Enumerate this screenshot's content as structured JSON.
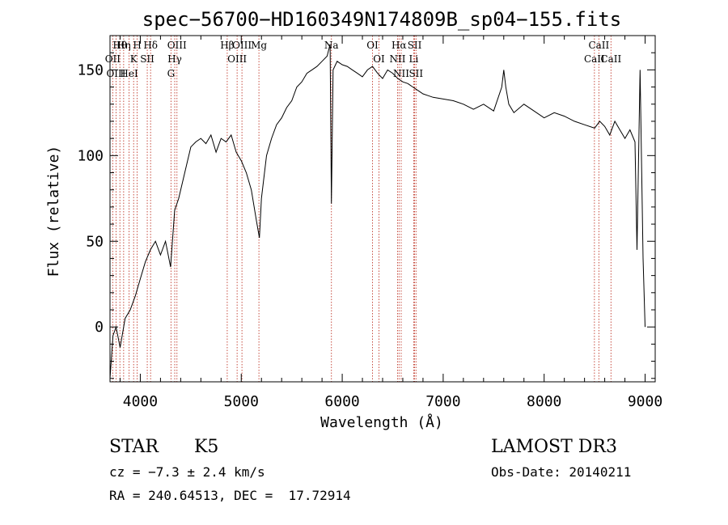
{
  "chart_data": {
    "type": "line",
    "title": "spec−56700−HD160349N174809B_sp04−155.fits",
    "xlabel": "Wavelength (Å)",
    "ylabel": "Flux (relative)",
    "xlim": [
      3700,
      9100
    ],
    "ylim": [
      -32,
      170
    ],
    "xticks": [
      4000,
      5000,
      6000,
      7000,
      8000,
      9000
    ],
    "yticks": [
      0,
      50,
      100,
      150
    ],
    "grid": false,
    "series": [
      {
        "x": [
          3700,
          3730,
          3760,
          3800,
          3850,
          3900,
          3950,
          4000,
          4050,
          4100,
          4150,
          4200,
          4250,
          4300,
          4340,
          4380,
          4420,
          4460,
          4500,
          4550,
          4600,
          4650,
          4700,
          4750,
          4800,
          4850,
          4900,
          4950,
          5000,
          5050,
          5100,
          5150,
          5180,
          5200,
          5250,
          5300,
          5350,
          5400,
          5450,
          5500,
          5550,
          5600,
          5650,
          5700,
          5750,
          5800,
          5850,
          5880,
          5893,
          5910,
          5950,
          6000,
          6050,
          6100,
          6150,
          6200,
          6250,
          6300,
          6350,
          6400,
          6450,
          6500,
          6550,
          6600,
          6650,
          6700,
          6750,
          6800,
          6850,
          6900,
          7000,
          7100,
          7200,
          7300,
          7400,
          7500,
          7580,
          7600,
          7620,
          7650,
          7700,
          7800,
          7900,
          8000,
          8100,
          8200,
          8300,
          8400,
          8500,
          8550,
          8600,
          8650,
          8700,
          8750,
          8800,
          8850,
          8900,
          8920,
          8950,
          8980,
          9000
        ],
        "y": [
          -30,
          -5,
          0,
          -12,
          5,
          10,
          18,
          28,
          38,
          45,
          50,
          42,
          50,
          35,
          68,
          75,
          85,
          95,
          105,
          108,
          110,
          107,
          112,
          102,
          110,
          108,
          112,
          102,
          97,
          90,
          80,
          62,
          52,
          75,
          100,
          110,
          118,
          122,
          128,
          132,
          140,
          143,
          148,
          150,
          152,
          155,
          158,
          165,
          72,
          150,
          155,
          153,
          152,
          150,
          148,
          146,
          150,
          152,
          148,
          145,
          150,
          148,
          145,
          143,
          142,
          140,
          138,
          136,
          135,
          134,
          133,
          132,
          130,
          127,
          130,
          126,
          140,
          150,
          140,
          130,
          125,
          130,
          126,
          122,
          125,
          123,
          120,
          118,
          116,
          120,
          117,
          112,
          120,
          115,
          110,
          115,
          108,
          45,
          150,
          40,
          0
        ]
      }
    ],
    "spectral_lines": [
      {
        "name": "Hθ",
        "wavelength": 3798
      },
      {
        "name": "OII",
        "wavelength": 3727
      },
      {
        "name": "OIII",
        "wavelength": 3760
      },
      {
        "name": "Hη",
        "wavelength": 3835
      },
      {
        "name": "K",
        "wavelength": 3934
      },
      {
        "name": "HeI",
        "wavelength": 3889
      },
      {
        "name": "H",
        "wavelength": 3969
      },
      {
        "name": "SII",
        "wavelength": 4069
      },
      {
        "name": "Hδ",
        "wavelength": 4102
      },
      {
        "name": "OIII",
        "wavelength": 4363
      },
      {
        "name": "Hγ",
        "wavelength": 4341
      },
      {
        "name": "G",
        "wavelength": 4304
      },
      {
        "name": "Hβ",
        "wavelength": 4861
      },
      {
        "name": "OIII",
        "wavelength": 5007
      },
      {
        "name": "OIII",
        "wavelength": 4959
      },
      {
        "name": "Mg",
        "wavelength": 5175
      },
      {
        "name": "Na",
        "wavelength": 5893
      },
      {
        "name": "OI",
        "wavelength": 6300
      },
      {
        "name": "OI",
        "wavelength": 6364
      },
      {
        "name": "Hα",
        "wavelength": 6563
      },
      {
        "name": "NII",
        "wavelength": 6548
      },
      {
        "name": "NII",
        "wavelength": 6584
      },
      {
        "name": "SII",
        "wavelength": 6717
      },
      {
        "name": "Li",
        "wavelength": 6708
      },
      {
        "name": "SII",
        "wavelength": 6731
      },
      {
        "name": "CaII",
        "wavelength": 8542
      },
      {
        "name": "CaII",
        "wavelength": 8498
      },
      {
        "name": "CaII",
        "wavelength": 8662
      }
    ]
  },
  "info": {
    "class_label": "STAR",
    "subclass_label": "K5",
    "survey": "LAMOST DR3",
    "redshift": "cz = −7.3 ± 2.4 km/s",
    "obs_date": "Obs-Date: 20140211",
    "coords": "RA = 240.64513, DEC =  17.72914"
  }
}
